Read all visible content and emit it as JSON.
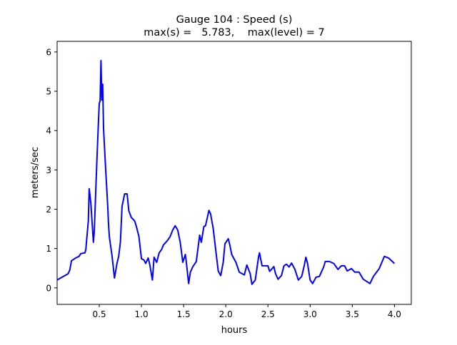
{
  "chart_data": {
    "type": "line",
    "title_line1": "Gauge 104 : Speed (s)",
    "title_line2": "max(s) =   5.783,    max(level) = 7",
    "xlabel": "hours",
    "ylabel": "meters/sec",
    "xlim": [
      0.0,
      4.2
    ],
    "ylim": [
      -0.42,
      6.27
    ],
    "xticks": [
      0.5,
      1.0,
      1.5,
      2.0,
      2.5,
      3.0,
      3.5,
      4.0
    ],
    "xtick_labels": [
      "0.5",
      "1.0",
      "1.5",
      "2.0",
      "2.5",
      "3.0",
      "3.5",
      "4.0"
    ],
    "yticks": [
      0,
      1,
      2,
      3,
      4,
      5,
      6
    ],
    "ytick_labels": [
      "0",
      "1",
      "2",
      "3",
      "4",
      "5",
      "6"
    ],
    "grid": false,
    "series": [
      {
        "name": "speed",
        "color": "#0000ff",
        "x": [
          0.0,
          0.13,
          0.15,
          0.17,
          0.22,
          0.26,
          0.28,
          0.33,
          0.34,
          0.37,
          0.38,
          0.4,
          0.43,
          0.44,
          0.47,
          0.49,
          0.5,
          0.51,
          0.52,
          0.53,
          0.54,
          0.55,
          0.57,
          0.6,
          0.61,
          0.62,
          0.65,
          0.68,
          0.71,
          0.73,
          0.75,
          0.77,
          0.8,
          0.83,
          0.85,
          0.88,
          0.92,
          0.94,
          0.97,
          1.0,
          1.03,
          1.05,
          1.08,
          1.1,
          1.13,
          1.15,
          1.18,
          1.21,
          1.24,
          1.26,
          1.29,
          1.31,
          1.34,
          1.37,
          1.4,
          1.43,
          1.46,
          1.49,
          1.52,
          1.53,
          1.56,
          1.58,
          1.61,
          1.65,
          1.69,
          1.71,
          1.74,
          1.76,
          1.8,
          1.82,
          1.85,
          1.88,
          1.91,
          1.94,
          1.97,
          1.99,
          2.03,
          2.05,
          2.07,
          2.12,
          2.16,
          2.22,
          2.25,
          2.29,
          2.31,
          2.35,
          2.39,
          2.4,
          2.43,
          2.5,
          2.52,
          2.57,
          2.59,
          2.62,
          2.66,
          2.69,
          2.72,
          2.75,
          2.78,
          2.82,
          2.86,
          2.9,
          2.93,
          2.95,
          2.97,
          3.0,
          3.03,
          3.07,
          3.11,
          3.16,
          3.18,
          3.23,
          3.28,
          3.33,
          3.37,
          3.41,
          3.44,
          3.49,
          3.53,
          3.58,
          3.63,
          3.71,
          3.75,
          3.82,
          3.88,
          3.93,
          4.0
        ],
        "y": [
          0.2,
          0.36,
          0.45,
          0.69,
          0.76,
          0.8,
          0.87,
          0.89,
          0.98,
          1.7,
          2.52,
          2.16,
          1.16,
          1.43,
          3.15,
          4.24,
          4.69,
          4.75,
          5.78,
          4.78,
          5.18,
          4.06,
          3.24,
          2.07,
          1.61,
          1.29,
          0.83,
          0.25,
          0.62,
          0.8,
          1.16,
          2.07,
          2.39,
          2.39,
          1.96,
          1.79,
          1.7,
          1.56,
          1.3,
          0.74,
          0.71,
          0.62,
          0.76,
          0.58,
          0.2,
          0.78,
          0.65,
          0.89,
          0.98,
          1.09,
          1.16,
          1.21,
          1.3,
          1.47,
          1.58,
          1.47,
          1.16,
          0.65,
          0.85,
          0.69,
          0.11,
          0.4,
          0.54,
          0.67,
          1.34,
          1.16,
          1.56,
          1.58,
          1.97,
          1.88,
          1.52,
          0.98,
          0.43,
          0.31,
          0.65,
          1.12,
          1.25,
          1.07,
          0.85,
          0.65,
          0.4,
          0.33,
          0.58,
          0.36,
          0.09,
          0.2,
          0.8,
          0.89,
          0.56,
          0.56,
          0.42,
          0.54,
          0.36,
          0.22,
          0.31,
          0.56,
          0.6,
          0.53,
          0.63,
          0.47,
          0.2,
          0.29,
          0.56,
          0.78,
          0.62,
          0.2,
          0.11,
          0.27,
          0.29,
          0.53,
          0.67,
          0.67,
          0.62,
          0.47,
          0.56,
          0.56,
          0.43,
          0.49,
          0.4,
          0.4,
          0.22,
          0.11,
          0.29,
          0.49,
          0.8,
          0.76,
          0.62
        ]
      }
    ]
  }
}
